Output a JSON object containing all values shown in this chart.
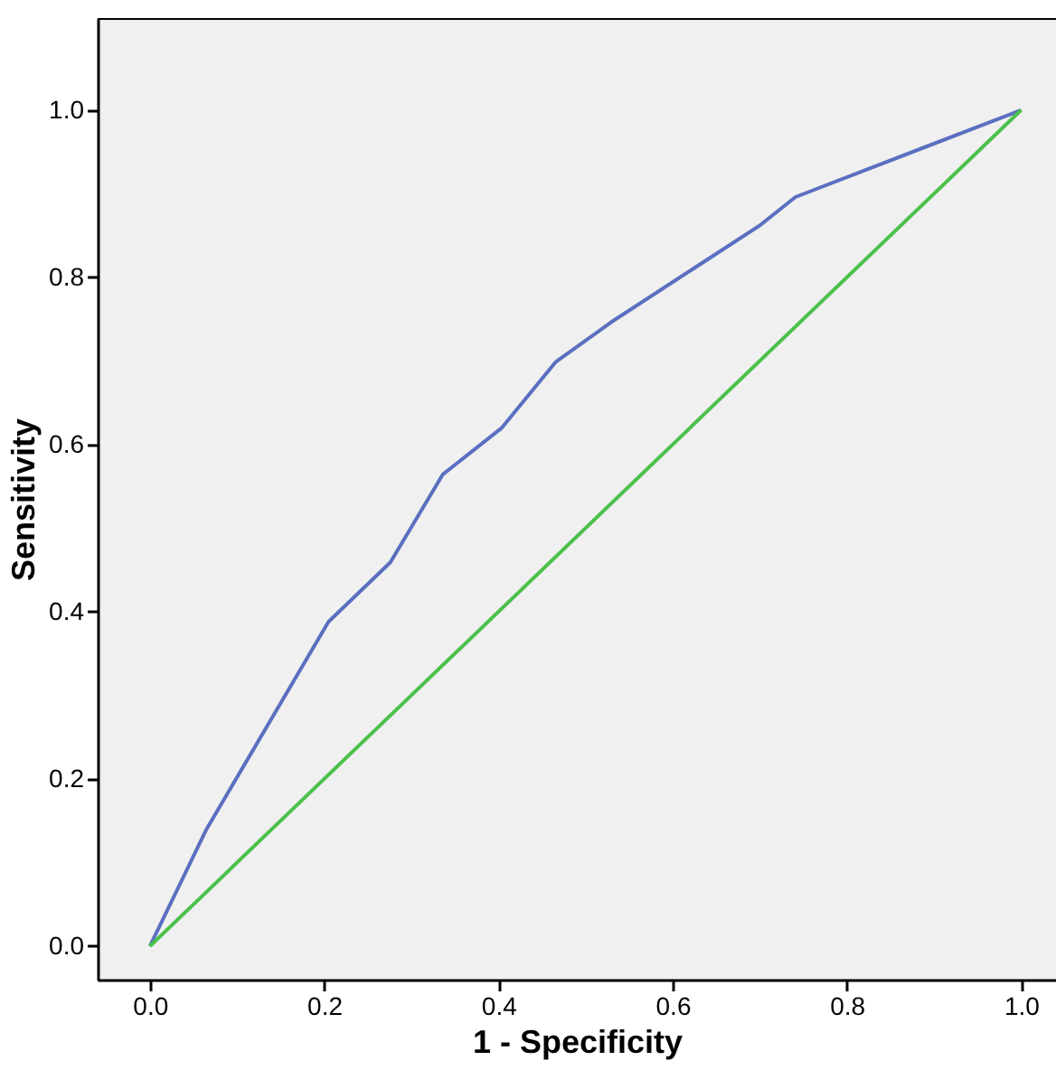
{
  "chart_data": {
    "type": "line",
    "xlabel": "1 - Specificity",
    "ylabel": "Sensitivity",
    "xlim": [
      -0.06,
      1.04
    ],
    "ylim": [
      -0.04,
      1.11
    ],
    "xticks": [
      {
        "value": 0,
        "label": "0.0"
      },
      0.2,
      0.4,
      0.6,
      0.8,
      {
        "value": 1,
        "label": "1.0"
      }
    ],
    "yticks": [
      {
        "value": 0,
        "label": "0.0"
      },
      0.2,
      0.4,
      0.6,
      0.8,
      {
        "value": 1,
        "label": "1.0"
      }
    ],
    "grid": false,
    "marker": "none",
    "line_style": "solid",
    "series": [
      {
        "color": "#5b6fc0",
        "x": [
          0,
          0.065,
          0.205,
          0.276,
          0.336,
          0.404,
          0.466,
          0.529,
          0.7,
          0.741,
          1
        ],
        "values": [
          0,
          0.14,
          0.388,
          0.459,
          0.564,
          0.62,
          0.699,
          0.746,
          0.862,
          0.896,
          1
        ]
      },
      {
        "color": "#4cc04c",
        "x": [
          0,
          1
        ],
        "values": [
          0,
          1
        ]
      }
    ]
  }
}
